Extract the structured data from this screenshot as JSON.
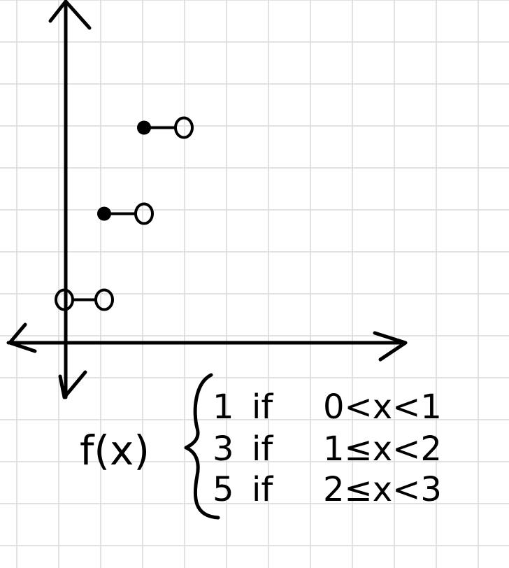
{
  "chart_data": {
    "type": "scatter",
    "x_range": [
      0,
      8
    ],
    "y_range": [
      0,
      5
    ],
    "grid": true,
    "segments": [
      {
        "x_start": 0,
        "x_end": 1,
        "y": 1,
        "start_closed": false,
        "end_closed": false
      },
      {
        "x_start": 1,
        "x_end": 2,
        "y": 3,
        "start_closed": true,
        "end_closed": false
      },
      {
        "x_start": 2,
        "x_end": 3,
        "y": 5,
        "start_closed": true,
        "end_closed": false
      }
    ]
  },
  "function_label": "f(x)",
  "cases": [
    {
      "value": "1",
      "word": "if",
      "condition": "0<x<1"
    },
    {
      "value": "3",
      "word": "if",
      "condition": "1≤x<2"
    },
    {
      "value": "5",
      "word": "if",
      "condition": "2≤x<3"
    }
  ],
  "colors": {
    "ink": "#000000",
    "grid": "#d9d9d9",
    "background": "#ffffff"
  }
}
